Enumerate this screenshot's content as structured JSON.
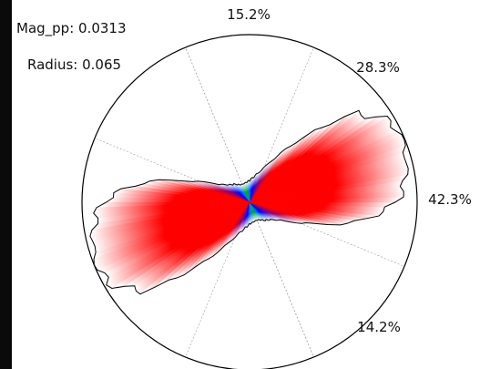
{
  "info": {
    "mag_pp": "Mag_pp: 0.0313",
    "radius": "Radius: 0.065"
  },
  "chart_data": {
    "type": "polar-rose",
    "title": "",
    "sector_labels": [
      "15.2%",
      "28.3%",
      "42.3%",
      "14.2%"
    ],
    "sector_values_percent": [
      15.2,
      28.3,
      42.3,
      14.2
    ],
    "sector_centers_deg": [
      90,
      45,
      0,
      -45
    ],
    "sector_boundaries_deg": [
      112.5,
      67.5,
      22.5,
      -22.5,
      -67.5
    ],
    "rose_radius_fraction": {
      "angles_deg": [
        0,
        10,
        20,
        30,
        40,
        50,
        60,
        70,
        80,
        90,
        100,
        110,
        120,
        130,
        140,
        150,
        160,
        170,
        180
      ],
      "values": [
        0.99,
        0.97,
        0.82,
        0.5,
        0.3,
        0.2,
        0.155,
        0.13,
        0.12,
        0.115,
        0.12,
        0.14,
        0.16,
        0.21,
        0.36,
        0.66,
        0.88,
        0.95,
        0.98
      ]
    },
    "color_wheel": [
      "red (0°)",
      "blue (±60°)",
      "green (90°)",
      "white (rim)"
    ],
    "grid": true,
    "outer_circle": true
  }
}
